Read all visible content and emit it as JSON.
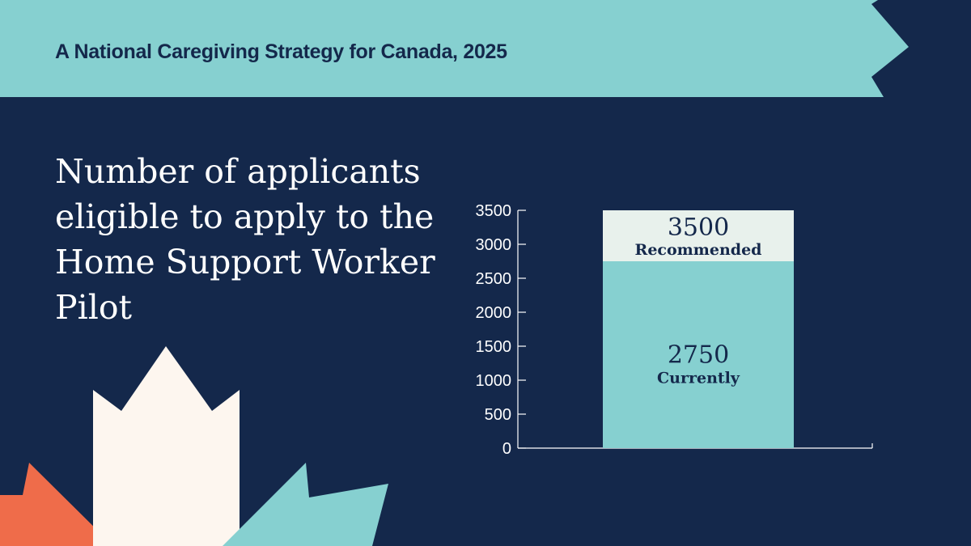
{
  "banner": {
    "title": "A National Caregiving Strategy for Canada, 2025",
    "color": "#86d0d0"
  },
  "headline": "Number of applicants eligible to apply to the Home Support Worker Pilot",
  "colors": {
    "background": "#14284b",
    "teal": "#86d0d0",
    "pale": "#e8f1ec",
    "cream": "#fdf6ef",
    "orange": "#ef6c4a"
  },
  "chart_data": {
    "type": "bar",
    "stacked": true,
    "categories": [
      ""
    ],
    "series": [
      {
        "name": "Currently",
        "values": [
          2750
        ],
        "display": "2750",
        "color": "#86d0d0"
      },
      {
        "name": "Recommended",
        "values": [
          750
        ],
        "display": "3500",
        "color": "#e8f1ec"
      }
    ],
    "yticks": [
      "0",
      "500",
      "1000",
      "1500",
      "2000",
      "2500",
      "3000",
      "3500"
    ],
    "ylim": [
      0,
      3500
    ],
    "title": "",
    "xlabel": "",
    "ylabel": "",
    "grid": false
  }
}
